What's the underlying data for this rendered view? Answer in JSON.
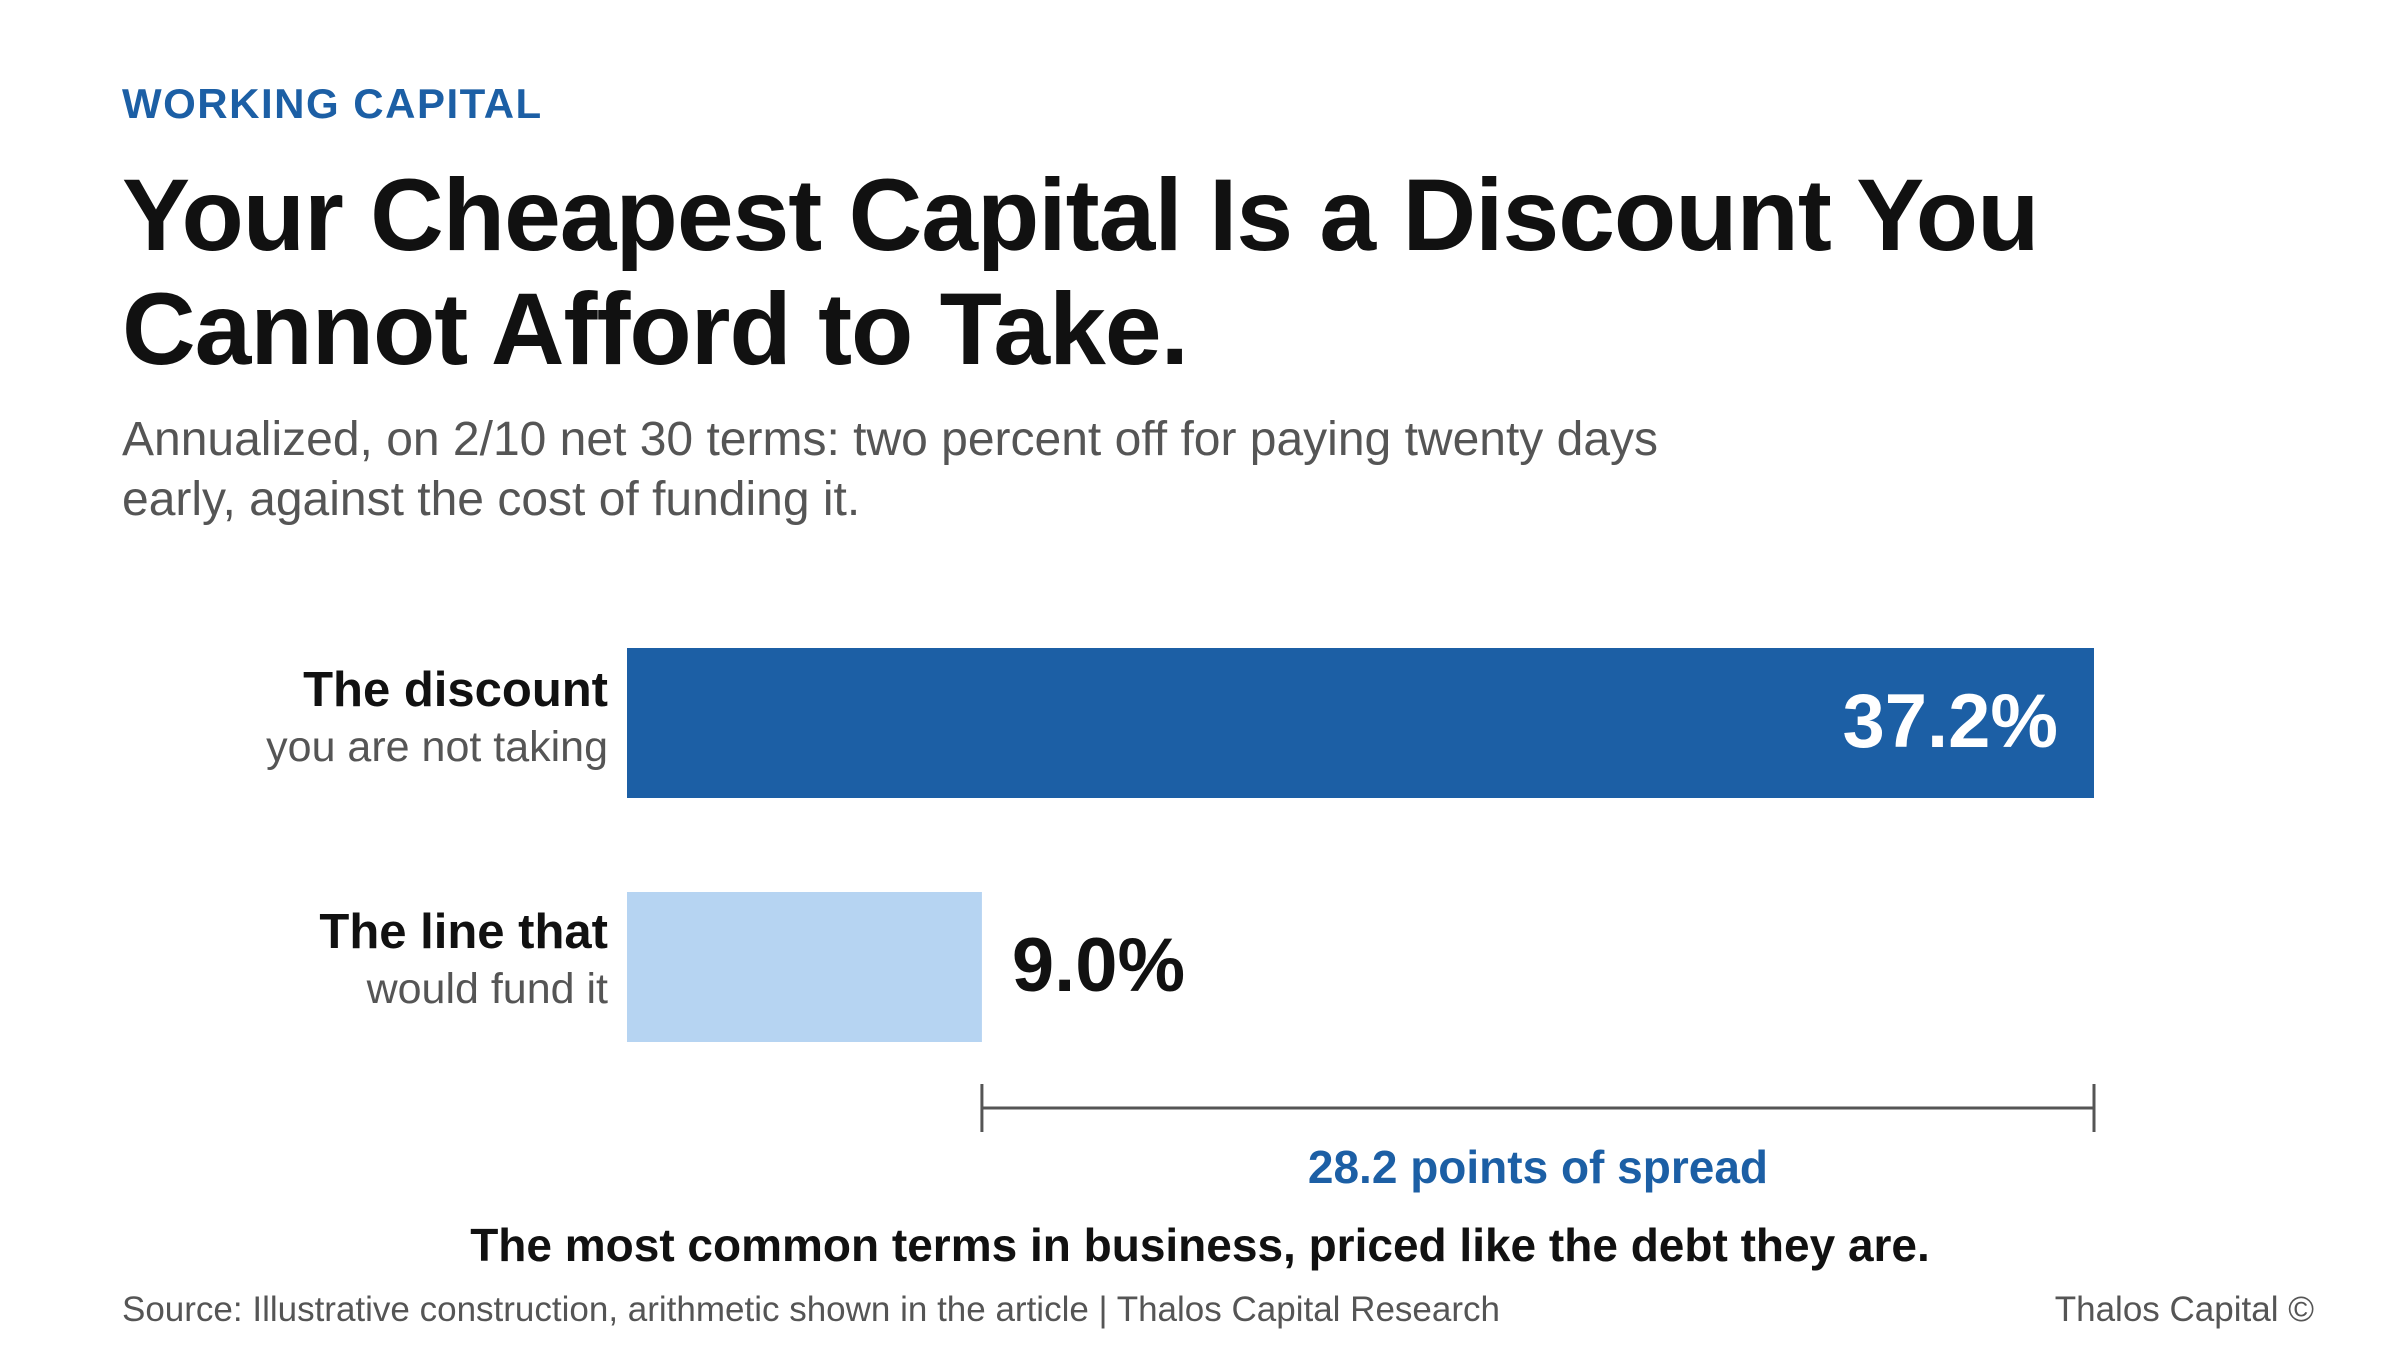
{
  "kicker": "WORKING CAPITAL",
  "title": "Your Cheapest Capital Is a Discount You Cannot Afford to Take.",
  "subtitle": "Annualized, on 2/10 net 30 terms: two percent off for paying twenty days early, against the cost of funding it.",
  "caption": "The most common terms in business, priced like the debt they are.",
  "source": "Source: Illustrative construction, arithmetic shown in the article | Thalos Capital Research",
  "brand": "Thalos Capital ©",
  "colors": {
    "accent": "#1c5fa5",
    "bar_discount": "#1c5fa5",
    "bar_line": "#b6d4f2"
  },
  "chart_data": {
    "type": "bar",
    "orientation": "horizontal",
    "categories": [
      {
        "main": "The discount",
        "sub": "you are not taking"
      },
      {
        "main": "The line that",
        "sub": "would fund it"
      }
    ],
    "values": [
      37.2,
      9.0
    ],
    "value_labels": [
      "37.2%",
      "9.0%"
    ],
    "xlim": [
      0,
      37.2
    ],
    "grid": false,
    "annotation": {
      "label": "28.2 points of spread",
      "from": 9.0,
      "to": 37.2
    }
  }
}
